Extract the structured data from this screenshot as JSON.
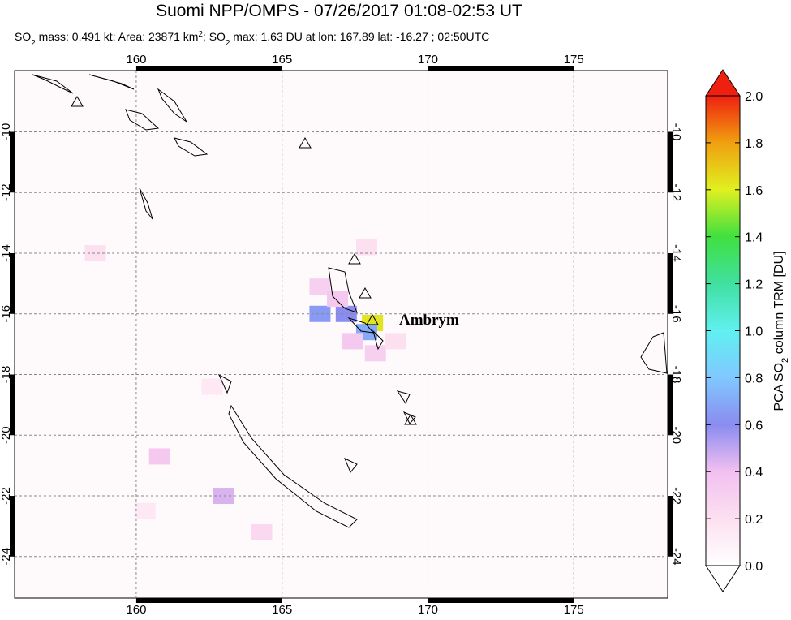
{
  "title": "Suomi NPP/OMPS - 07/26/2017 01:08-02:53 UT",
  "subtitle_parts": [
    "SO",
    "2",
    " mass: 0.491 kt; Area: 23871 km",
    "2",
    "; SO",
    "2",
    " max: 1.63 DU at lon: 167.89 lat: -16.27 ; 02:50UTC"
  ],
  "annotation": "Ambrym",
  "xlim": [
    155.83,
    178.22
  ],
  "ylim": [
    -25.37,
    -7.98
  ],
  "xticks": [
    160,
    165,
    170,
    175
  ],
  "yticks": [
    -10,
    -12,
    -14,
    -16,
    -18,
    -20,
    -22,
    -24
  ],
  "colorbar_label_parts": [
    "PCA SO",
    "2",
    " column TRM [DU]"
  ],
  "colorbar_ticks": [
    {
      "value": 0,
      "label": "0.0"
    },
    {
      "value": 0.2,
      "label": "0.2"
    },
    {
      "value": 0.4,
      "label": "0.4"
    },
    {
      "value": 0.6,
      "label": "0.6"
    },
    {
      "value": 0.8,
      "label": "0.8"
    },
    {
      "value": 1,
      "label": "1.0"
    },
    {
      "value": 1.2,
      "label": "1.2"
    },
    {
      "value": 1.4,
      "label": "1.4"
    },
    {
      "value": 1.6,
      "label": "1.6"
    },
    {
      "value": 1.8,
      "label": "1.8"
    },
    {
      "value": 2,
      "label": "2.0"
    }
  ],
  "so2_pixels": [
    {
      "lon": 168.1,
      "lat": -16.3,
      "value": 1.63
    },
    {
      "lon": 166.3,
      "lat": -16.0,
      "value": 0.65
    },
    {
      "lon": 167.2,
      "lat": -16.0,
      "value": 0.6
    },
    {
      "lon": 167.9,
      "lat": -16.6,
      "value": 0.7
    },
    {
      "lon": 166.3,
      "lat": -15.1,
      "value": 0.3
    },
    {
      "lon": 166.9,
      "lat": -15.5,
      "value": 0.35
    },
    {
      "lon": 167.4,
      "lat": -16.9,
      "value": 0.35
    },
    {
      "lon": 168.2,
      "lat": -17.3,
      "value": 0.3
    },
    {
      "lon": 168.9,
      "lat": -16.9,
      "value": 0.2
    },
    {
      "lon": 167.9,
      "lat": -13.8,
      "value": 0.2
    },
    {
      "lon": 163.0,
      "lat": -22.0,
      "value": 0.45
    },
    {
      "lon": 160.8,
      "lat": -20.7,
      "value": 0.35
    },
    {
      "lon": 158.6,
      "lat": -14.0,
      "value": 0.2
    },
    {
      "lon": 160.3,
      "lat": -22.5,
      "value": 0.15
    },
    {
      "lon": 164.3,
      "lat": -23.2,
      "value": 0.25
    },
    {
      "lon": 162.6,
      "lat": -18.4,
      "value": 0.15
    }
  ]
}
